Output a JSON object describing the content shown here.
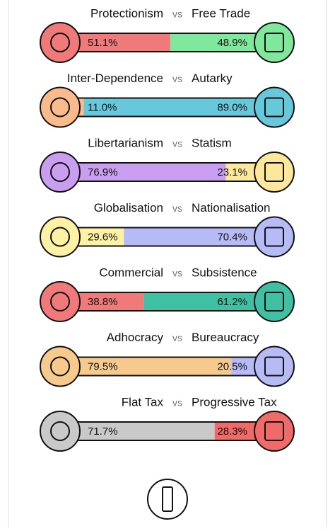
{
  "separator": "vs",
  "axes": [
    {
      "left": "Protectionism",
      "right": "Free Trade",
      "left_value": 51.1,
      "left_label": "51.1%",
      "right_value": 48.9,
      "right_label": "48.9%",
      "left_color": "#f07a7a",
      "right_color": "#80e89c"
    },
    {
      "left": "Inter-Dependence",
      "right": "Autarky",
      "left_value": 11.0,
      "left_label": "11.0%",
      "right_value": 89.0,
      "right_label": "89.0%",
      "left_color": "#f9bb8c",
      "right_color": "#66c8da"
    },
    {
      "left": "Libertarianism",
      "right": "Statism",
      "left_value": 76.9,
      "left_label": "76.9%",
      "right_value": 23.1,
      "right_label": "23.1%",
      "left_color": "#c99ef0",
      "right_color": "#fde79c"
    },
    {
      "left": "Globalisation",
      "right": "Nationalisation",
      "left_value": 29.6,
      "left_label": "29.6%",
      "right_value": 70.4,
      "right_label": "70.4%",
      "left_color": "#fdf1a6",
      "right_color": "#b6baf5"
    },
    {
      "left": "Commercial",
      "right": "Subsistence",
      "left_value": 38.8,
      "left_label": "38.8%",
      "right_value": 61.2,
      "right_label": "61.2%",
      "left_color": "#f07a7a",
      "right_color": "#40c0a2"
    },
    {
      "left": "Adhocracy",
      "right": "Bureaucracy",
      "left_value": 79.5,
      "left_label": "79.5%",
      "right_value": 20.5,
      "right_label": "20.5%",
      "left_color": "#f6c98c",
      "right_color": "#b6baf5"
    },
    {
      "left": "Flat Tax",
      "right": "Progressive Tax",
      "left_value": 71.7,
      "left_label": "71.7%",
      "right_value": 28.3,
      "right_label": "28.3%",
      "left_color": "#c9c9c9",
      "right_color": "#f06a6a"
    }
  ]
}
